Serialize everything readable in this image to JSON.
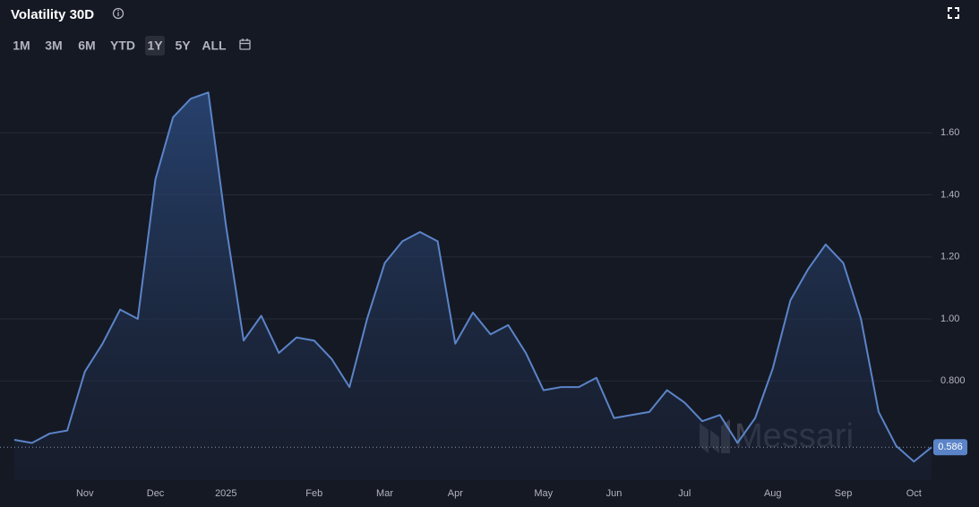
{
  "chart_data": {
    "type": "area",
    "title": "Volatility 30D",
    "ranges": [
      "1M",
      "3M",
      "6M",
      "YTD",
      "1Y",
      "5Y",
      "ALL"
    ],
    "active_range": "1Y",
    "watermark": "Messari",
    "color": "#5b84c8",
    "grid": true,
    "categories": [
      null,
      null,
      null,
      null,
      "Nov",
      null,
      null,
      null,
      "Dec",
      null,
      null,
      null,
      "2025",
      null,
      null,
      null,
      null,
      "Feb",
      null,
      null,
      null,
      "Mar",
      null,
      null,
      null,
      "Apr",
      null,
      null,
      null,
      null,
      "May",
      null,
      null,
      null,
      "Jun",
      null,
      null,
      null,
      "Jul",
      null,
      null,
      null,
      null,
      "Aug",
      null,
      null,
      null,
      "Sep",
      null,
      null,
      null,
      "Oct",
      null
    ],
    "values": [
      0.61,
      0.6,
      0.63,
      0.64,
      0.83,
      0.92,
      1.03,
      1.0,
      1.45,
      1.65,
      1.71,
      1.73,
      1.3,
      0.93,
      1.01,
      0.89,
      0.94,
      0.93,
      0.87,
      0.78,
      1.0,
      1.18,
      1.25,
      1.28,
      1.25,
      0.92,
      1.02,
      0.95,
      0.98,
      0.89,
      0.77,
      0.78,
      0.78,
      0.81,
      0.68,
      0.69,
      0.7,
      0.77,
      0.73,
      0.67,
      0.69,
      0.6,
      0.68,
      0.84,
      1.06,
      1.16,
      1.24,
      1.18,
      1.0,
      0.7,
      0.59,
      0.54,
      0.586
    ],
    "ylim": [
      0.48,
      1.8
    ],
    "yticks": [
      {
        "value": 0.8,
        "label": "0.800"
      },
      {
        "value": 1,
        "label": "1.00"
      },
      {
        "value": 1.2,
        "label": "1.20"
      },
      {
        "value": 1.4,
        "label": "1.40"
      },
      {
        "value": 1.6,
        "label": "1.60"
      }
    ]
  }
}
